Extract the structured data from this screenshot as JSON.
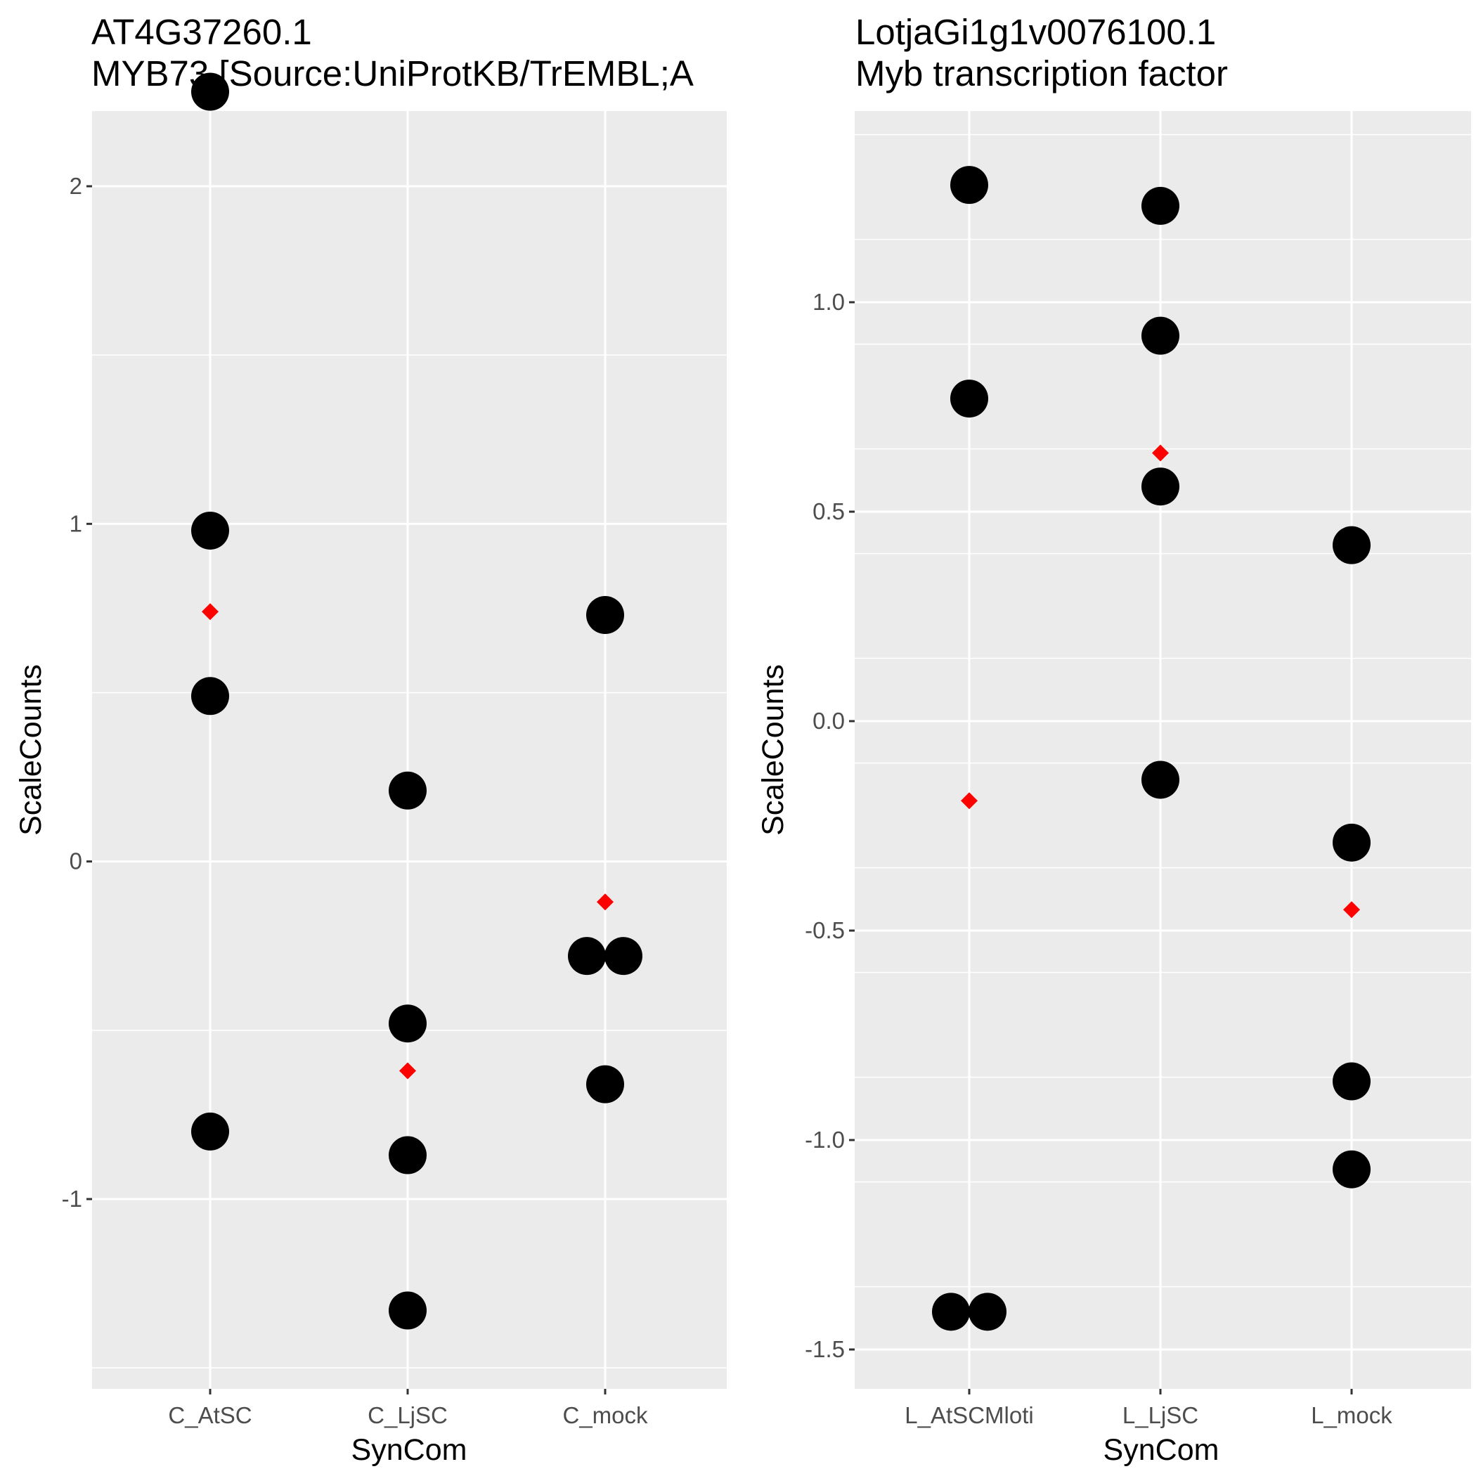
{
  "chart_data": [
    {
      "type": "scatter",
      "title": "AT4G37260.1",
      "subtitle": "MYB73 [Source:UniProtKB/TrEMBL;A",
      "xlabel": "SynCom",
      "ylabel": "ScaleCounts",
      "categories": [
        "C_AtSC",
        "C_LjSC",
        "C_mock"
      ],
      "ylim": [
        -1.5,
        2.5
      ],
      "y_ticks": [
        -1,
        0,
        1,
        2
      ],
      "y_tick_labels": [
        "-1",
        "0",
        "1",
        "2"
      ],
      "grid": true,
      "point_color": "#000000",
      "mean_color": "#ff0000",
      "points": [
        {
          "category": "C_AtSC",
          "y": 2.28
        },
        {
          "category": "C_AtSC",
          "y": 0.98
        },
        {
          "category": "C_AtSC",
          "y": 0.49
        },
        {
          "category": "C_AtSC",
          "y": -0.8
        },
        {
          "category": "C_LjSC",
          "y": 0.21
        },
        {
          "category": "C_LjSC",
          "y": -0.48
        },
        {
          "category": "C_LjSC",
          "y": -0.87
        },
        {
          "category": "C_LjSC",
          "y": -1.33
        },
        {
          "category": "C_mock",
          "y": 0.73
        },
        {
          "category": "C_mock",
          "y": -0.28
        },
        {
          "category": "C_mock",
          "y": -0.28
        },
        {
          "category": "C_mock",
          "y": -0.66
        }
      ],
      "means": [
        {
          "category": "C_AtSC",
          "y": 0.74
        },
        {
          "category": "C_LjSC",
          "y": -0.62
        },
        {
          "category": "C_mock",
          "y": -0.12
        }
      ]
    },
    {
      "type": "scatter",
      "title": "LotjaGi1g1v0076100.1",
      "subtitle": "Myb transcription factor",
      "xlabel": "SynCom",
      "ylabel": "ScaleCounts",
      "categories": [
        "L_AtSCMloti",
        "L_LjSC",
        "L_mock"
      ],
      "ylim": [
        -1.6,
        1.4
      ],
      "y_ticks": [
        -1.5,
        -1.0,
        -0.5,
        0.0,
        0.5,
        1.0
      ],
      "y_tick_labels": [
        "-1.5",
        "-1.0",
        "-0.5",
        "0.0",
        "0.5",
        "1.0"
      ],
      "grid": true,
      "point_color": "#000000",
      "mean_color": "#ff0000",
      "points": [
        {
          "category": "L_AtSCMloti",
          "y": 1.28
        },
        {
          "category": "L_AtSCMloti",
          "y": 0.77
        },
        {
          "category": "L_AtSCMloti",
          "y": -1.41
        },
        {
          "category": "L_AtSCMloti",
          "y": -1.41
        },
        {
          "category": "L_LjSC",
          "y": 1.23
        },
        {
          "category": "L_LjSC",
          "y": 0.92
        },
        {
          "category": "L_LjSC",
          "y": 0.56
        },
        {
          "category": "L_LjSC",
          "y": -0.14
        },
        {
          "category": "L_mock",
          "y": 0.42
        },
        {
          "category": "L_mock",
          "y": -0.29
        },
        {
          "category": "L_mock",
          "y": -0.86
        },
        {
          "category": "L_mock",
          "y": -1.07
        }
      ],
      "means": [
        {
          "category": "L_AtSCMloti",
          "y": -0.19
        },
        {
          "category": "L_LjSC",
          "y": 0.64
        },
        {
          "category": "L_mock",
          "y": -0.45
        }
      ]
    }
  ]
}
